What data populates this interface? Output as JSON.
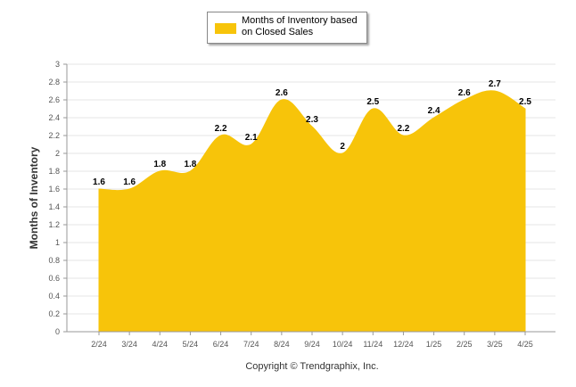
{
  "chart_data": {
    "type": "area",
    "categories": [
      "2/24",
      "3/24",
      "4/24",
      "5/24",
      "6/24",
      "7/24",
      "8/24",
      "9/24",
      "10/24",
      "11/24",
      "12/24",
      "1/25",
      "2/25",
      "3/25",
      "4/25"
    ],
    "series": [
      {
        "name": "Months of Inventory based on Closed Sales",
        "values": [
          1.6,
          1.6,
          1.8,
          1.8,
          2.2,
          2.1,
          2.6,
          2.3,
          2,
          2.5,
          2.2,
          2.4,
          2.6,
          2.7,
          2.5
        ],
        "labels": [
          "1.6",
          "1.6",
          "1.8",
          "1.8",
          "2.2",
          "2.1",
          "2.6",
          "2.3",
          "2",
          "2.5",
          "2.2",
          "2.4",
          "2.6",
          "2.7",
          "2.5"
        ],
        "color": "#F7C40A"
      }
    ],
    "ylabel": "Months of Inventory",
    "xlabel": "",
    "ylim": [
      0,
      3
    ],
    "yticks": [
      "0",
      "0.2",
      "0.4",
      "0.6",
      "0.8",
      "1",
      "1.2",
      "1.4",
      "1.6",
      "1.8",
      "2",
      "2.2",
      "2.4",
      "2.6",
      "2.8",
      "3"
    ],
    "grid": true,
    "legend_position": "top"
  },
  "legend": {
    "label": "Months of Inventory based\non Closed Sales"
  },
  "footer": {
    "copyright": "Copyright © Trendgraphix, Inc."
  },
  "colors": {
    "grid": "#e6e6e6",
    "axis": "#999999"
  }
}
